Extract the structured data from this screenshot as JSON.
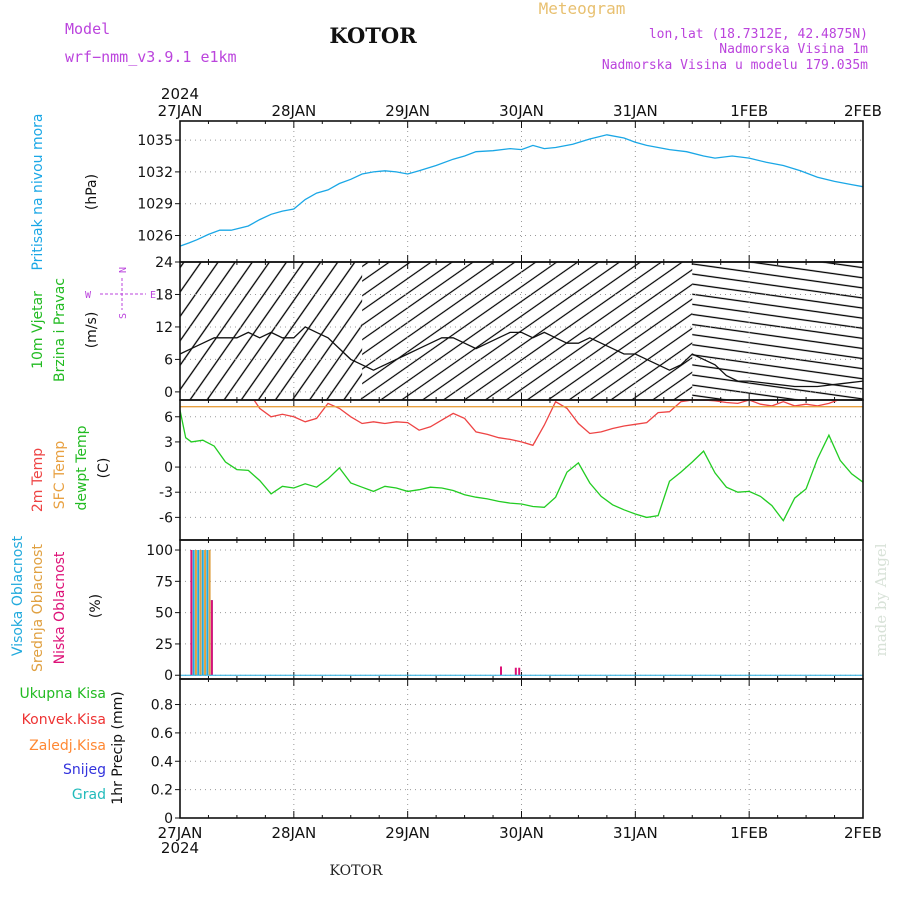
{
  "header": {
    "model_label": "Model",
    "model_name": "wrf−nmm_v3.9.1  e1km",
    "station": "KOTOR",
    "meteogram_label": "Meteogram",
    "lonlat": "lon,lat (18.7312E, 42.4875N)",
    "elevation": "Nadmorska Visina 1m",
    "model_elevation": "Nadmorska Visina u modelu 179.035m",
    "year_top": "2024",
    "year_bottom": "2024",
    "footer_station": "KOTOR",
    "watermark": "made by Angel"
  },
  "colors": {
    "pressure": "#1aa7e6",
    "wind_label": "#22bb22",
    "temp_2m": "#ee4444",
    "temp_sfc": "#e8a040",
    "temp_dewpt": "#22cc22",
    "cloud_high": "#22aadd",
    "cloud_mid": "#e0a040",
    "cloud_low": "#dd1177",
    "precip_total": "#22bb22",
    "precip_conv": "#ee3333",
    "precip_frz": "#ff8833",
    "precip_snow": "#3333dd",
    "precip_grad": "#22bbbb",
    "wind_compass": "#bb44dd"
  },
  "chart_data": {
    "type": "line",
    "x_axis": {
      "tick_labels": [
        "27JAN",
        "28JAN",
        "29JAN",
        "30JAN",
        "31JAN",
        "1FEB",
        "2FEB"
      ],
      "range_days": [
        0,
        6
      ]
    },
    "panels": [
      {
        "id": "pressure",
        "ylabel_lines": [
          "Pritisak na nivou mora",
          "(hPa)"
        ],
        "yticks": [
          1026,
          1029,
          1032,
          1035
        ],
        "ylim": [
          1023.5,
          1036.8
        ],
        "series": [
          {
            "name": "Pritisak na nivou mora",
            "x": [
              0,
              0.08,
              0.15,
              0.25,
              0.35,
              0.45,
              0.6,
              0.7,
              0.8,
              0.9,
              1.0,
              1.1,
              1.2,
              1.3,
              1.4,
              1.5,
              1.6,
              1.7,
              1.8,
              1.9,
              2.0,
              2.1,
              2.25,
              2.4,
              2.5,
              2.6,
              2.75,
              2.9,
              3.0,
              3.1,
              3.2,
              3.3,
              3.45,
              3.6,
              3.75,
              3.9,
              4.0,
              4.1,
              4.2,
              4.3,
              4.45,
              4.6,
              4.7,
              4.85,
              5.0,
              5.15,
              5.3,
              5.45,
              5.6,
              5.75,
              5.9,
              6.0
            ],
            "values": [
              1025.0,
              1025.3,
              1025.6,
              1026.1,
              1026.5,
              1026.5,
              1026.9,
              1027.5,
              1028.0,
              1028.3,
              1028.5,
              1029.4,
              1030.0,
              1030.3,
              1030.9,
              1031.3,
              1031.8,
              1032.0,
              1032.1,
              1032.0,
              1031.8,
              1032.1,
              1032.6,
              1033.2,
              1033.5,
              1033.9,
              1034.0,
              1034.2,
              1034.1,
              1034.5,
              1034.2,
              1034.3,
              1034.6,
              1035.1,
              1035.5,
              1035.2,
              1034.8,
              1034.5,
              1034.3,
              1034.1,
              1033.9,
              1033.5,
              1033.3,
              1033.5,
              1033.3,
              1032.9,
              1032.6,
              1032.1,
              1031.5,
              1031.1,
              1030.8,
              1030.6
            ]
          }
        ]
      },
      {
        "id": "wind",
        "ylabel_lines": [
          "10m Vjetar",
          "Brzina i Pravac",
          "(m/s)"
        ],
        "yticks": [
          0,
          6,
          12,
          18,
          24
        ],
        "ylim": [
          -1.5,
          24
        ],
        "compass": {
          "north": "N",
          "south": "S",
          "east": "E",
          "west": "W"
        },
        "series": [
          {
            "name": "Brzina",
            "x": [
              0,
              0.1,
              0.2,
              0.3,
              0.4,
              0.5,
              0.6,
              0.7,
              0.8,
              0.9,
              1.0,
              1.1,
              1.2,
              1.3,
              1.4,
              1.5,
              1.6,
              1.7,
              1.8,
              1.9,
              2.0,
              2.1,
              2.2,
              2.3,
              2.4,
              2.5,
              2.6,
              2.7,
              2.8,
              2.9,
              3.0,
              3.1,
              3.2,
              3.3,
              3.4,
              3.5,
              3.6,
              3.7,
              3.8,
              3.9,
              4.0,
              4.1,
              4.2,
              4.3,
              4.4,
              4.5,
              4.6,
              4.7,
              4.8,
              4.9,
              5.0,
              5.2,
              5.4,
              5.6,
              5.8,
              6.0
            ],
            "values": [
              7,
              8,
              9,
              10,
              10,
              10,
              11,
              10,
              11,
              10,
              10,
              12,
              11,
              10,
              8,
              6,
              5,
              4,
              5,
              6,
              7,
              8,
              9,
              10,
              10,
              9,
              8,
              9,
              10,
              11,
              11,
              10,
              11,
              10,
              9,
              9,
              10,
              9,
              8,
              7,
              7,
              6,
              5,
              4,
              5,
              7,
              6,
              5,
              3,
              2,
              2,
              1.5,
              1,
              1,
              1.5,
              2
            ]
          }
        ]
      },
      {
        "id": "temperature",
        "ylabel_lines": [
          "2m Temp",
          "SFC Temp",
          "dewpt Temp",
          "(C)"
        ],
        "yticks": [
          -6,
          -3,
          0,
          3,
          6
        ],
        "ylim": [
          -8.7,
          8.0
        ],
        "series": [
          {
            "name": "2m Temp",
            "x": [
              0.65,
              0.7,
              0.8,
              0.9,
              1.0,
              1.1,
              1.2,
              1.3,
              1.4,
              1.5,
              1.6,
              1.7,
              1.8,
              1.9,
              2.0,
              2.1,
              2.2,
              2.3,
              2.4,
              2.5,
              2.6,
              2.7,
              2.8,
              2.9,
              3.0,
              3.1,
              3.2,
              3.3,
              3.4,
              3.5,
              3.6,
              3.7,
              3.8,
              3.9,
              4.0,
              4.1,
              4.2,
              4.3,
              4.4,
              4.5,
              4.6,
              4.7,
              4.8,
              4.9,
              5.0,
              5.1,
              5.2,
              5.3,
              5.4,
              5.5,
              5.6,
              5.7,
              5.78
            ],
            "values": [
              8.0,
              7.0,
              6.0,
              6.3,
              6.0,
              5.4,
              5.8,
              7.6,
              7.0,
              6.0,
              5.2,
              5.4,
              5.2,
              5.4,
              5.3,
              4.4,
              4.8,
              5.6,
              6.4,
              5.8,
              4.2,
              3.9,
              3.5,
              3.3,
              3.0,
              2.6,
              5.0,
              7.8,
              7.0,
              5.2,
              4.0,
              4.2,
              4.6,
              4.9,
              5.1,
              5.3,
              6.5,
              6.6,
              7.8,
              8.0,
              8.0,
              7.9,
              7.7,
              7.6,
              8.0,
              7.5,
              7.3,
              7.8,
              7.3,
              7.5,
              7.3,
              7.6,
              8.0
            ]
          },
          {
            "name": "SFC Temp",
            "x": [
              0,
              6
            ],
            "values": [
              7.2,
              7.2
            ]
          },
          {
            "name": "dewpt Temp",
            "x": [
              0,
              0.05,
              0.1,
              0.2,
              0.3,
              0.4,
              0.5,
              0.6,
              0.7,
              0.8,
              0.9,
              1.0,
              1.1,
              1.2,
              1.3,
              1.4,
              1.5,
              1.6,
              1.7,
              1.8,
              1.9,
              2.0,
              2.1,
              2.2,
              2.3,
              2.4,
              2.5,
              2.6,
              2.7,
              2.8,
              2.9,
              3.0,
              3.1,
              3.2,
              3.3,
              3.4,
              3.5,
              3.6,
              3.7,
              3.8,
              3.9,
              4.0,
              4.1,
              4.2,
              4.3,
              4.4,
              4.5,
              4.6,
              4.7,
              4.8,
              4.9,
              5.0,
              5.1,
              5.2,
              5.3,
              5.4,
              5.5,
              5.6,
              5.7,
              5.8,
              5.9,
              6.0
            ],
            "values": [
              6.8,
              3.5,
              3.0,
              3.2,
              2.5,
              0.6,
              -0.3,
              -0.4,
              -1.6,
              -3.2,
              -2.3,
              -2.5,
              -2.0,
              -2.4,
              -1.4,
              -0.1,
              -1.9,
              -2.4,
              -2.9,
              -2.3,
              -2.5,
              -2.9,
              -2.7,
              -2.4,
              -2.5,
              -2.8,
              -3.3,
              -3.6,
              -3.8,
              -4.1,
              -4.3,
              -4.4,
              -4.7,
              -4.8,
              -3.6,
              -0.6,
              0.5,
              -1.9,
              -3.5,
              -4.5,
              -5.1,
              -5.6,
              -6.0,
              -5.8,
              -1.7,
              -0.6,
              0.6,
              1.9,
              -0.7,
              -2.4,
              -3.0,
              -2.9,
              -3.5,
              -4.6,
              -6.4,
              -3.7,
              -2.6,
              1.0,
              3.8,
              0.8,
              -0.8,
              -1.8
            ]
          }
        ]
      },
      {
        "id": "cloud",
        "ylabel_lines": [
          "Visoka Oblacnost",
          "Srednja Oblacnost",
          "Niska Oblacnost",
          "(%)"
        ],
        "yticks": [
          0,
          25,
          50,
          75,
          100
        ],
        "ylim": [
          -3,
          108
        ],
        "series": [
          {
            "name": "Visoka Oblacnost",
            "x": [
              0.12,
              0.16,
              0.2,
              0.24,
              0.28
            ],
            "values": [
              100,
              100,
              100,
              100,
              60
            ]
          },
          {
            "name": "Srednja Oblacnost",
            "x": [
              0.14,
              0.18,
              0.22,
              0.26
            ],
            "values": [
              100,
              100,
              100,
              100
            ]
          },
          {
            "name": "Niska Oblacnost",
            "x": [
              0.1,
              0.28,
              2.82,
              2.95,
              2.98
            ],
            "values": [
              100,
              60,
              7,
              6,
              6
            ]
          }
        ]
      },
      {
        "id": "precip",
        "ylabel_lines": [
          "1hr Precip (mm)"
        ],
        "yticks": [
          0,
          0.2,
          0.4,
          0.6,
          0.8
        ],
        "ytick_labels": [
          "0",
          "0.2",
          "0.4",
          "0.6",
          "0.8"
        ],
        "ylim": [
          0,
          0.98
        ],
        "legend": [
          "Ukupna Kisa",
          "Konvek.Kisa",
          "Zaledj.Kisa",
          "Snijeg",
          "Grad"
        ],
        "series": []
      }
    ]
  }
}
